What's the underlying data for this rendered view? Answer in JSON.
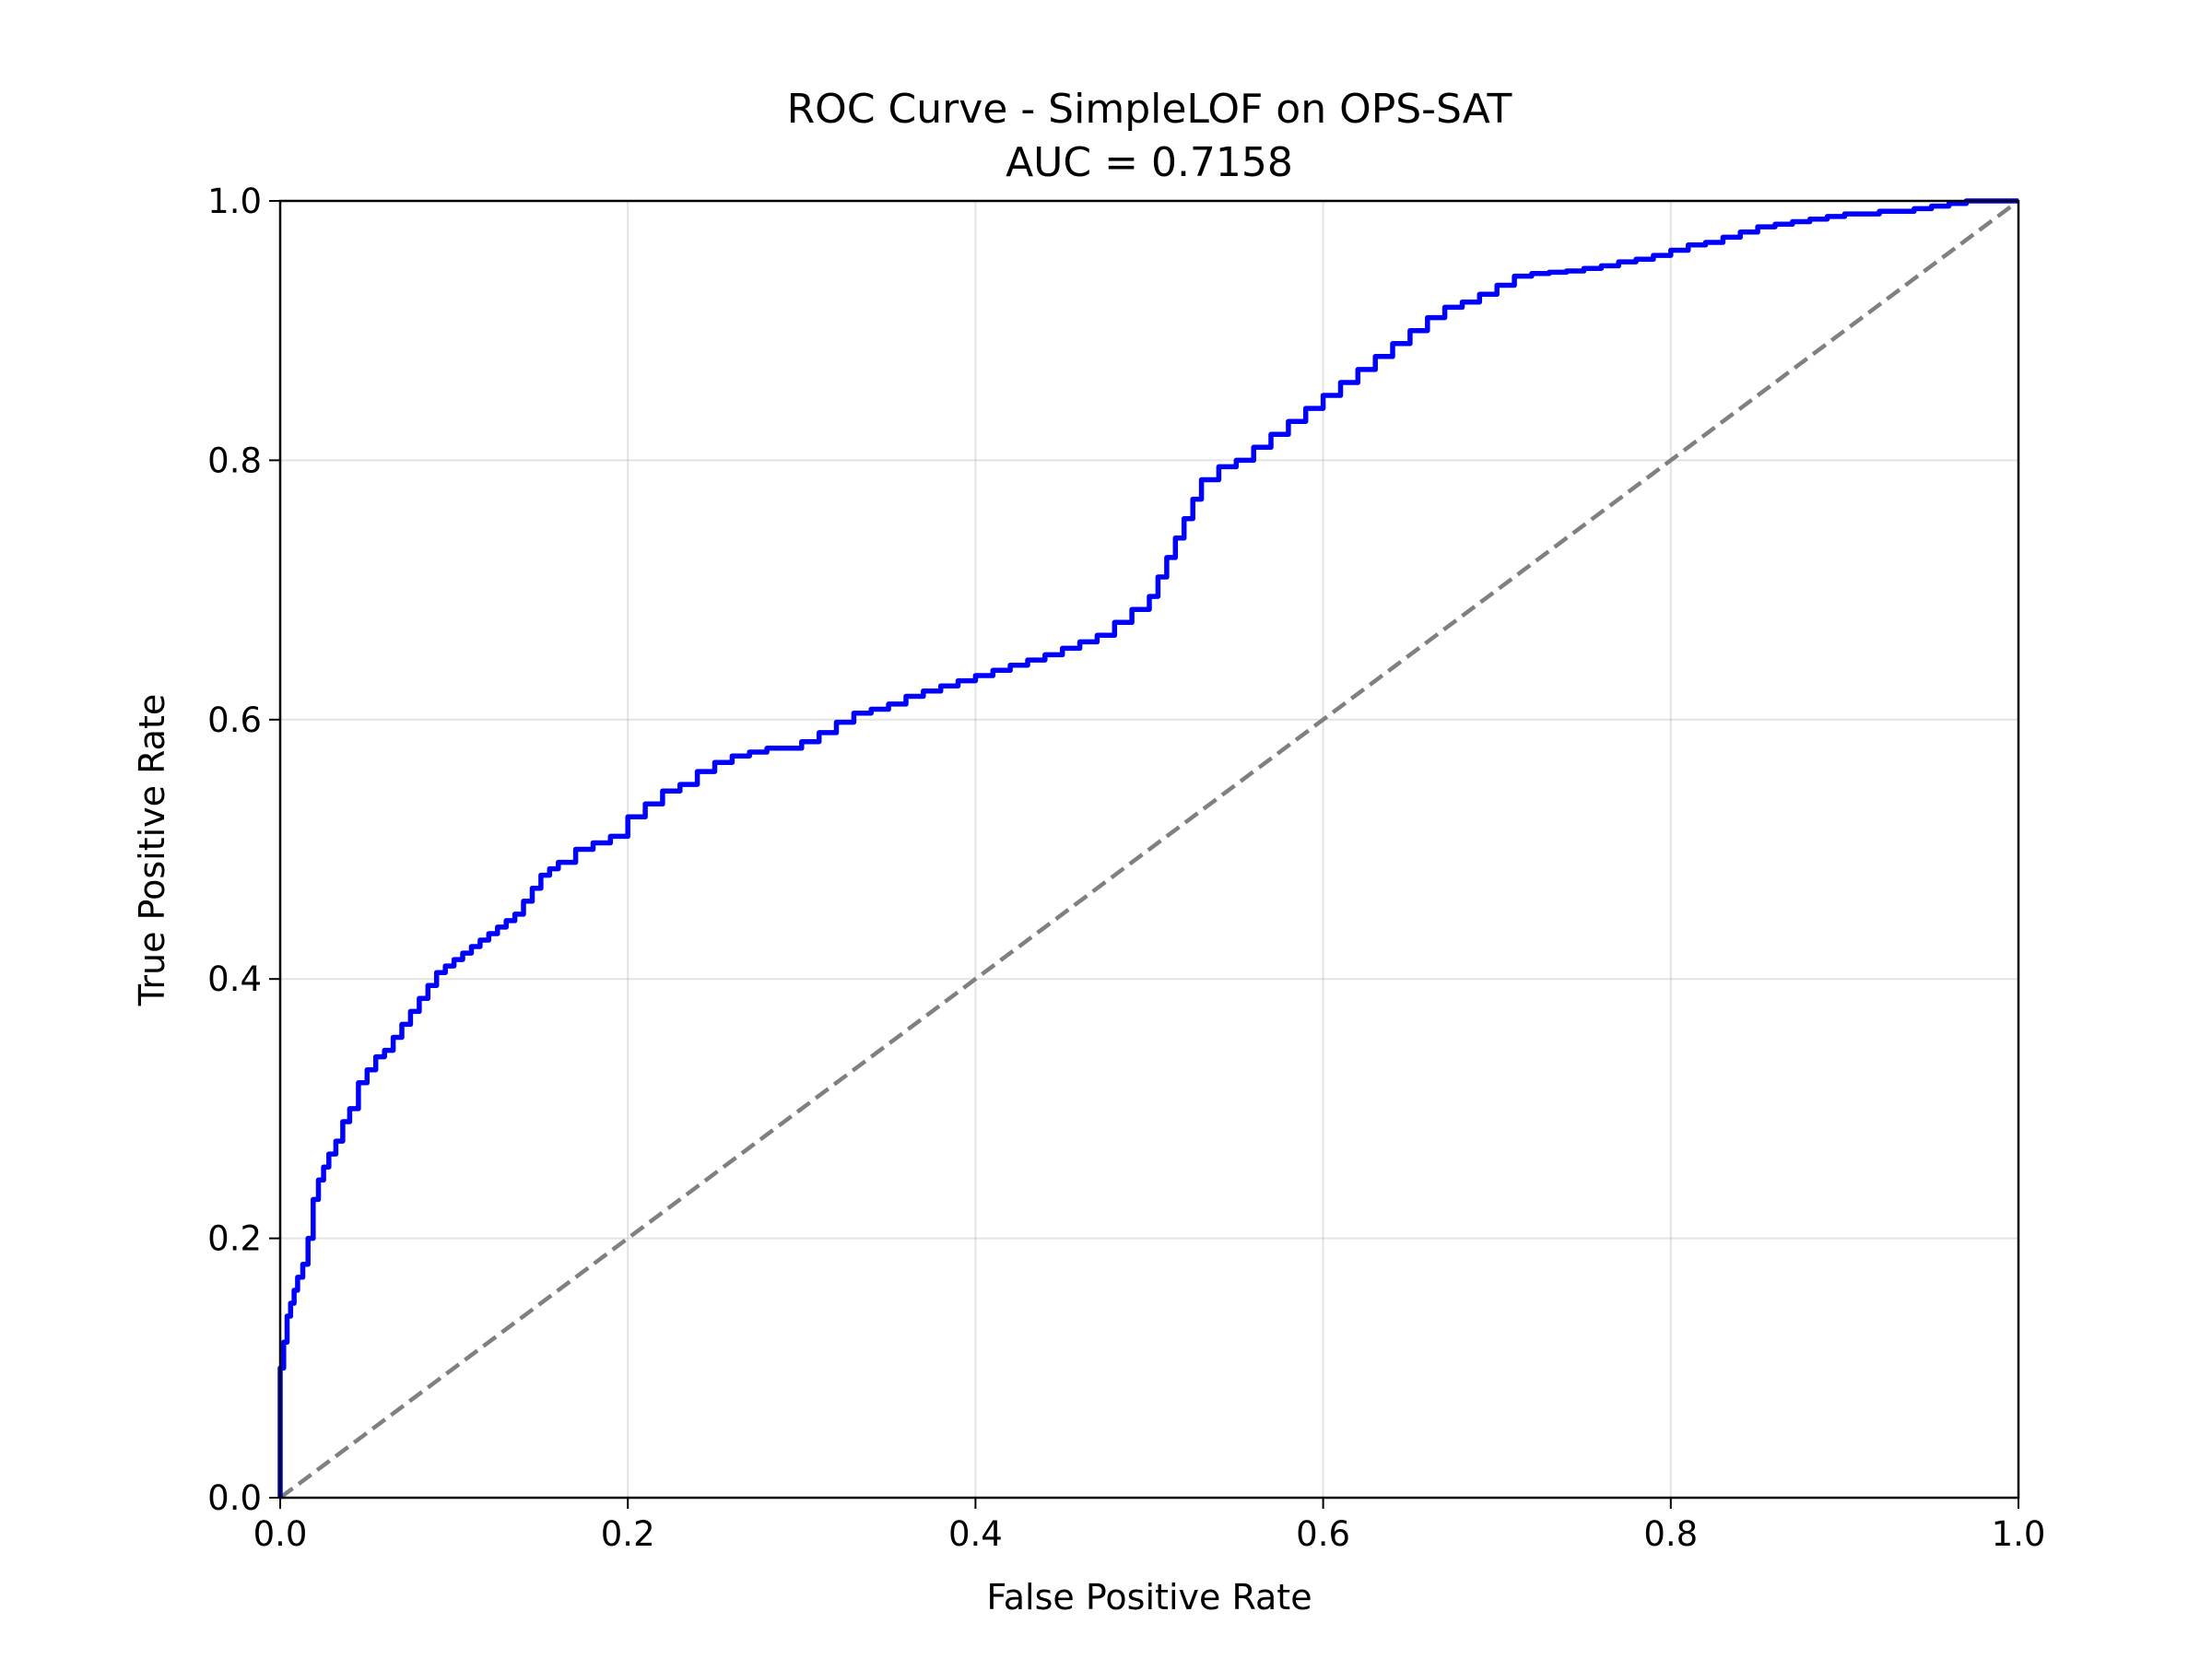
{
  "chart_data": {
    "type": "line",
    "title": "ROC Curve - SimpleLOF on OPS-SAT",
    "subtitle": "AUC = 0.7158",
    "xlabel": "False Positive Rate",
    "ylabel": "True Positive Rate",
    "xlim": [
      0.0,
      1.0
    ],
    "ylim": [
      0.0,
      1.0
    ],
    "xticks": [
      "0.0",
      "0.2",
      "0.4",
      "0.6",
      "0.8",
      "1.0"
    ],
    "yticks": [
      "0.0",
      "0.2",
      "0.4",
      "0.6",
      "0.8",
      "1.0"
    ],
    "grid": true,
    "legend": "none",
    "series": [
      {
        "color": "#0000ff",
        "style": "solid",
        "x": [
          0.0,
          0.0,
          0.002,
          0.004,
          0.006,
          0.008,
          0.01,
          0.013,
          0.016,
          0.019,
          0.022,
          0.025,
          0.028,
          0.032,
          0.036,
          0.04,
          0.045,
          0.05,
          0.055,
          0.06,
          0.065,
          0.07,
          0.075,
          0.08,
          0.085,
          0.09,
          0.095,
          0.1,
          0.105,
          0.11,
          0.115,
          0.12,
          0.125,
          0.13,
          0.135,
          0.14,
          0.145,
          0.15,
          0.155,
          0.16,
          0.17,
          0.18,
          0.19,
          0.2,
          0.21,
          0.22,
          0.23,
          0.24,
          0.25,
          0.26,
          0.27,
          0.28,
          0.29,
          0.3,
          0.31,
          0.32,
          0.33,
          0.34,
          0.35,
          0.36,
          0.37,
          0.38,
          0.39,
          0.4,
          0.41,
          0.42,
          0.43,
          0.44,
          0.45,
          0.46,
          0.47,
          0.48,
          0.49,
          0.5,
          0.505,
          0.51,
          0.515,
          0.52,
          0.525,
          0.53,
          0.54,
          0.55,
          0.56,
          0.57,
          0.58,
          0.59,
          0.6,
          0.61,
          0.62,
          0.63,
          0.64,
          0.65,
          0.66,
          0.67,
          0.68,
          0.69,
          0.7,
          0.71,
          0.72,
          0.73,
          0.74,
          0.75,
          0.76,
          0.77,
          0.78,
          0.79,
          0.8,
          0.81,
          0.82,
          0.83,
          0.84,
          0.85,
          0.86,
          0.87,
          0.88,
          0.89,
          0.9,
          0.92,
          0.94,
          0.95,
          0.96,
          0.97,
          0.98,
          0.99,
          1.0
        ],
        "y": [
          0.0,
          0.06,
          0.1,
          0.12,
          0.14,
          0.15,
          0.16,
          0.17,
          0.18,
          0.2,
          0.23,
          0.245,
          0.255,
          0.265,
          0.275,
          0.29,
          0.3,
          0.32,
          0.33,
          0.34,
          0.345,
          0.355,
          0.365,
          0.375,
          0.385,
          0.395,
          0.405,
          0.41,
          0.415,
          0.42,
          0.425,
          0.43,
          0.435,
          0.44,
          0.445,
          0.45,
          0.46,
          0.47,
          0.48,
          0.485,
          0.49,
          0.5,
          0.505,
          0.51,
          0.525,
          0.535,
          0.545,
          0.55,
          0.56,
          0.567,
          0.572,
          0.575,
          0.578,
          0.578,
          0.583,
          0.59,
          0.598,
          0.605,
          0.608,
          0.612,
          0.618,
          0.622,
          0.626,
          0.63,
          0.634,
          0.638,
          0.642,
          0.646,
          0.65,
          0.655,
          0.66,
          0.665,
          0.675,
          0.685,
          0.695,
          0.71,
          0.725,
          0.74,
          0.755,
          0.77,
          0.785,
          0.795,
          0.8,
          0.81,
          0.82,
          0.83,
          0.84,
          0.85,
          0.86,
          0.87,
          0.88,
          0.89,
          0.9,
          0.91,
          0.918,
          0.922,
          0.928,
          0.935,
          0.942,
          0.944,
          0.945,
          0.946,
          0.948,
          0.95,
          0.953,
          0.955,
          0.958,
          0.962,
          0.966,
          0.968,
          0.972,
          0.976,
          0.98,
          0.982,
          0.984,
          0.986,
          0.988,
          0.99,
          0.992,
          0.994,
          0.996,
          0.998,
          1.0,
          1.0,
          1.0
        ]
      },
      {
        "color": "#808080",
        "style": "dashed",
        "x": [
          0.0,
          1.0
        ],
        "y": [
          0.0,
          1.0
        ]
      }
    ]
  }
}
